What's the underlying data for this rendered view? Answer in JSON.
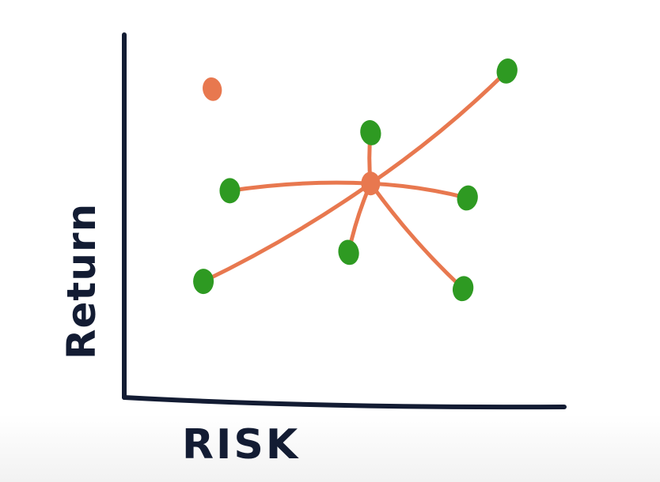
{
  "chart_data": {
    "type": "scatter",
    "title": "",
    "xlabel": "RISK",
    "ylabel": "Return",
    "xlim": [
      0,
      10
    ],
    "ylim": [
      0,
      10
    ],
    "grid": false,
    "legend": "none",
    "colors": {
      "axis": "#131c33",
      "green": "#2e9a22",
      "orange": "#e8784f"
    },
    "points": [
      {
        "x": 2.0,
        "y": 8.5,
        "color": "orange"
      },
      {
        "x": 5.6,
        "y": 5.9,
        "color": "orange"
      },
      {
        "x": 8.7,
        "y": 9.0,
        "color": "green"
      },
      {
        "x": 5.6,
        "y": 7.3,
        "color": "green"
      },
      {
        "x": 2.4,
        "y": 5.7,
        "color": "green"
      },
      {
        "x": 7.8,
        "y": 5.5,
        "color": "green"
      },
      {
        "x": 5.1,
        "y": 4.0,
        "color": "green"
      },
      {
        "x": 1.8,
        "y": 3.2,
        "color": "green"
      },
      {
        "x": 7.7,
        "y": 3.0,
        "color": "green"
      }
    ],
    "links": [
      {
        "from": 1,
        "to": 2
      },
      {
        "from": 1,
        "to": 3
      },
      {
        "from": 1,
        "to": 4
      },
      {
        "from": 1,
        "to": 5
      },
      {
        "from": 1,
        "to": 6
      },
      {
        "from": 1,
        "to": 7
      },
      {
        "from": 1,
        "to": 8
      }
    ]
  }
}
